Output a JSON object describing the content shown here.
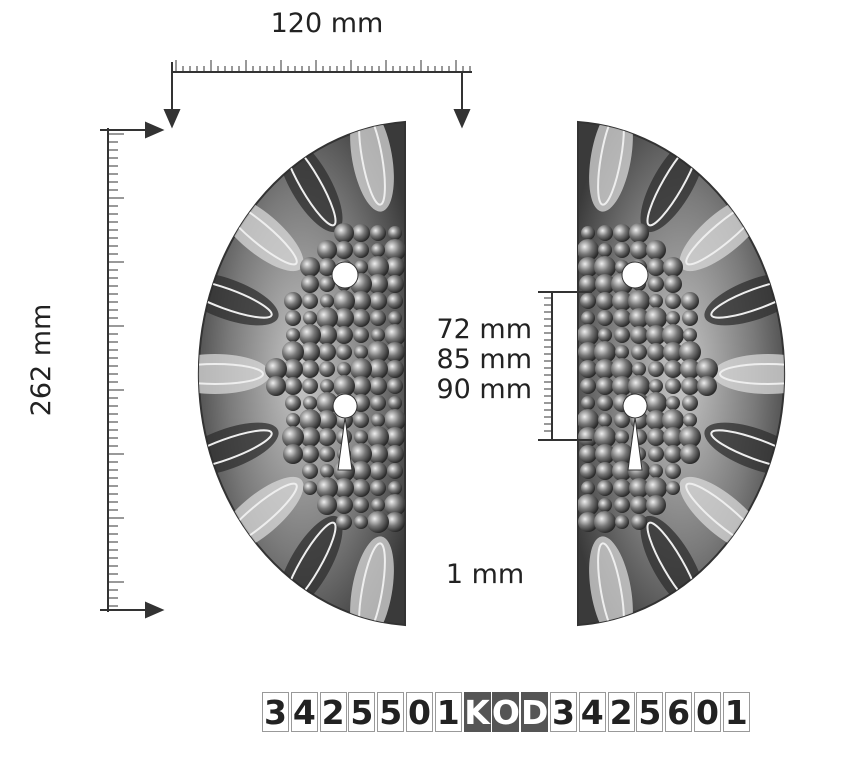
{
  "dimensions": {
    "width": "120 mm",
    "height": "262 mm",
    "spacings": [
      "72 mm",
      "85 mm",
      "90 mm"
    ],
    "thickness": "1 mm"
  },
  "codes": {
    "left": "3425501",
    "label": "KOD",
    "right": "3425601"
  }
}
